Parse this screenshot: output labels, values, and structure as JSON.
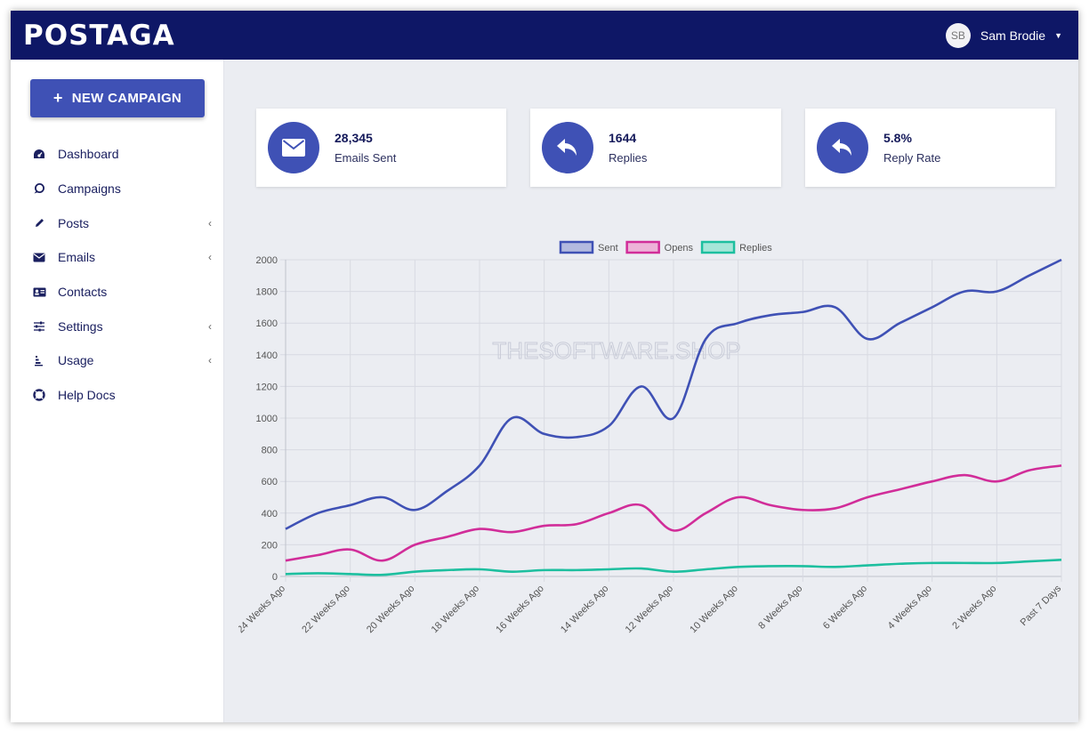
{
  "app": {
    "logo": "POSTAGA"
  },
  "user": {
    "initials": "SB",
    "name": "Sam Brodie"
  },
  "sidebar": {
    "new_campaign": "NEW CAMPAIGN",
    "items": [
      {
        "label": "Dashboard",
        "icon": "dashboard-icon",
        "chevron": false
      },
      {
        "label": "Campaigns",
        "icon": "campaigns-icon",
        "chevron": false
      },
      {
        "label": "Posts",
        "icon": "pencil-icon",
        "chevron": true
      },
      {
        "label": "Emails",
        "icon": "envelope-icon",
        "chevron": true
      },
      {
        "label": "Contacts",
        "icon": "contact-card-icon",
        "chevron": false
      },
      {
        "label": "Settings",
        "icon": "sliders-icon",
        "chevron": true
      },
      {
        "label": "Usage",
        "icon": "usage-icon",
        "chevron": true
      },
      {
        "label": "Help Docs",
        "icon": "lifebuoy-icon",
        "chevron": false
      }
    ]
  },
  "stats": [
    {
      "value": "28,345",
      "label": "Emails Sent",
      "icon": "envelope-icon"
    },
    {
      "value": "1644",
      "label": "Replies",
      "icon": "reply-icon"
    },
    {
      "value": "5.8%",
      "label": "Reply Rate",
      "icon": "reply-icon"
    }
  ],
  "watermark": "THESOFTWARE.SHOP",
  "colors": {
    "primary": "#3f51b5",
    "header": "#0e1766",
    "sent": "#3f51b5",
    "opens": "#d12d99",
    "replies": "#1dbf9f"
  },
  "chart_data": {
    "type": "line",
    "x": [
      "24 Weeks Ago",
      "",
      "22 Weeks Ago",
      "",
      "20 Weeks Ago",
      "",
      "18 Weeks Ago",
      "",
      "16 Weeks Ago",
      "",
      "14 Weeks Ago",
      "",
      "12 Weeks Ago",
      "",
      "10 Weeks Ago",
      "",
      "8 Weeks Ago",
      "",
      "6 Weeks Ago",
      "",
      "4 Weeks Ago",
      "",
      "2 Weeks Ago",
      "",
      "Past 7 Days"
    ],
    "series": [
      {
        "name": "Sent",
        "color": "#3f51b5",
        "fill": "#b3badf",
        "values": [
          300,
          400,
          450,
          500,
          420,
          540,
          700,
          1000,
          900,
          880,
          950,
          1200,
          1000,
          1500,
          1600,
          1650,
          1670,
          1700,
          1500,
          1600,
          1700,
          1800,
          1800,
          1900,
          2000
        ]
      },
      {
        "name": "Opens",
        "color": "#d12d99",
        "fill": "#edb3d8",
        "values": [
          100,
          135,
          170,
          100,
          200,
          250,
          300,
          280,
          320,
          330,
          400,
          450,
          290,
          400,
          500,
          450,
          420,
          430,
          500,
          550,
          600,
          640,
          600,
          670,
          700
        ]
      },
      {
        "name": "Replies",
        "color": "#1dbf9f",
        "fill": "#a6e6d8",
        "values": [
          15,
          20,
          15,
          10,
          30,
          40,
          45,
          30,
          40,
          40,
          45,
          50,
          30,
          45,
          60,
          65,
          65,
          60,
          70,
          80,
          85,
          85,
          85,
          95,
          105
        ]
      }
    ],
    "ylim": [
      0,
      2000
    ],
    "yticks": [
      0,
      200,
      400,
      600,
      800,
      1000,
      1200,
      1400,
      1600,
      1800,
      2000
    ],
    "grid": true,
    "legend": "top-center"
  }
}
